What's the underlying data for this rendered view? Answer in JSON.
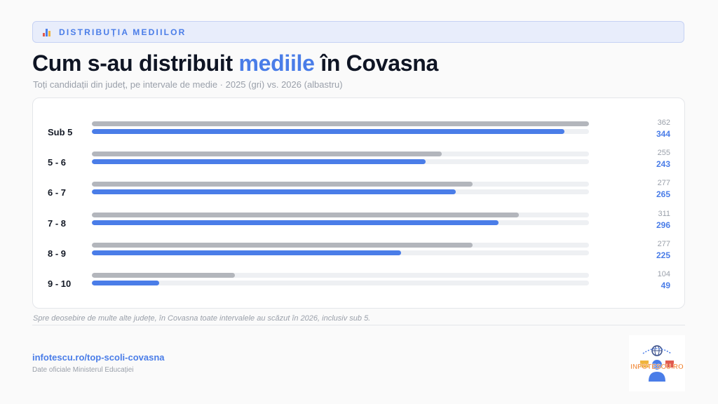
{
  "header": {
    "tag_icon": "bar-chart-icon",
    "tag_label": "DISTRIBUȚIA MEDIILOR",
    "title_before": "Cum s-au distribuit ",
    "title_accent": "mediile",
    "title_after": " în Covasna",
    "subtitle": "Toți candidații din județ, pe intervale de medie · 2025 (gri) vs. 2026 (albastru)"
  },
  "colors": {
    "accent": "#4a7de8",
    "series_2025": "#b3b6bc",
    "series_2026": "#4a7de8",
    "track": "#eef0f3"
  },
  "chart_data": {
    "type": "bar",
    "orientation": "horizontal",
    "categories": [
      "Sub 5",
      "5 - 6",
      "6 - 7",
      "7 - 8",
      "8 - 9",
      "9 - 10"
    ],
    "series": [
      {
        "name": "2025",
        "values": [
          362,
          255,
          277,
          311,
          277,
          104
        ]
      },
      {
        "name": "2026",
        "values": [
          344,
          243,
          265,
          296,
          225,
          49
        ]
      }
    ],
    "xlim": [
      0,
      362
    ],
    "grid": false,
    "data_labels": true
  },
  "footer": {
    "note": "Spre deosebire de multe alte județe, în Covasna toate intervalele au scăzut în 2026, inclusiv sub 5.",
    "link": "infotescu.ro/top-scoli-covasna",
    "source": "Date oficiale Ministerul Educației",
    "logo_text": "INFOTESCU.RO"
  }
}
